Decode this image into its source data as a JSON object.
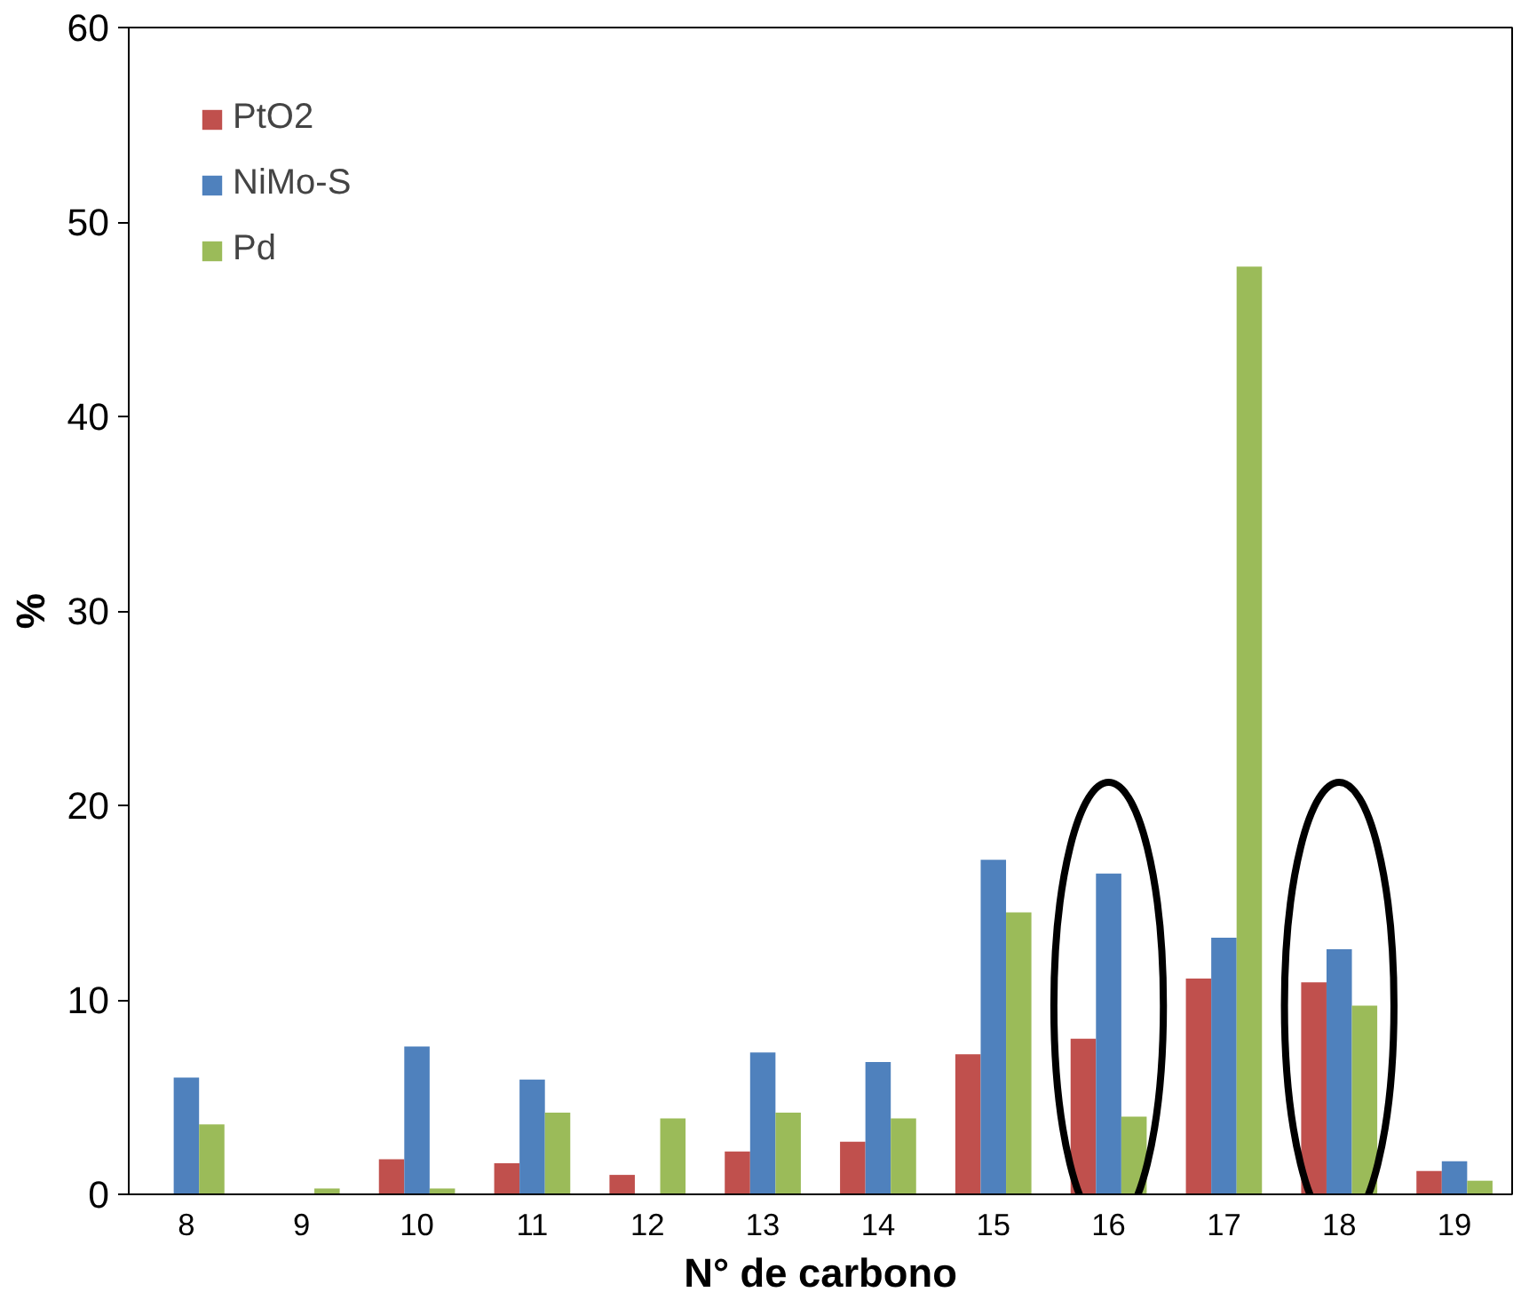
{
  "chart_data": {
    "type": "bar",
    "xlabel": "N° de carbono",
    "ylabel": "%",
    "categories": [
      "8",
      "9",
      "10",
      "11",
      "12",
      "13",
      "14",
      "15",
      "16",
      "17",
      "18",
      "19"
    ],
    "series": [
      {
        "name": "PtO2",
        "color": "#c0504d",
        "values": [
          0,
          0,
          1.8,
          1.6,
          1.0,
          2.2,
          2.7,
          7.2,
          8.0,
          11.1,
          10.9,
          1.2
        ]
      },
      {
        "name": "NiMo-S",
        "color": "#4f81bd",
        "values": [
          6.0,
          0,
          7.6,
          5.9,
          0,
          7.3,
          6.8,
          17.2,
          16.5,
          13.2,
          12.6,
          1.7
        ]
      },
      {
        "name": "Pd",
        "color": "#9bbb59",
        "values": [
          3.6,
          0.3,
          0.3,
          4.2,
          3.9,
          4.2,
          3.9,
          14.5,
          4.0,
          47.7,
          9.7,
          0.7
        ]
      }
    ],
    "ylim": [
      0,
      60
    ],
    "yticks": [
      0,
      10,
      20,
      30,
      40,
      50,
      60
    ],
    "grid": false,
    "legend": "top left"
  }
}
